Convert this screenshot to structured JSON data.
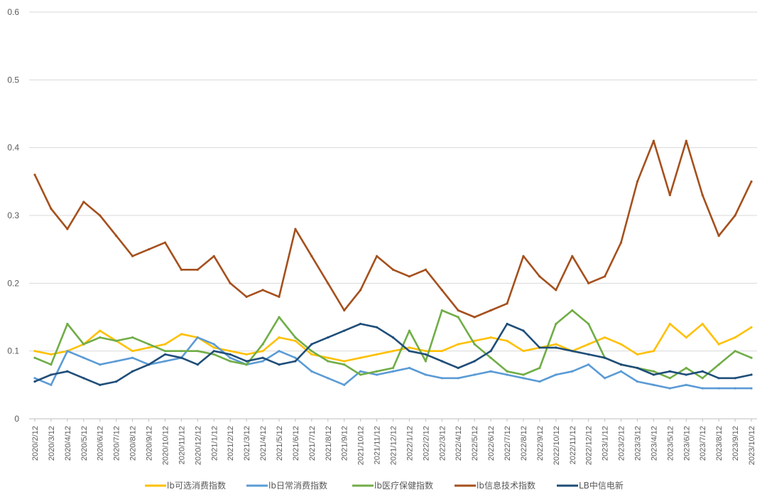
{
  "chart_data": {
    "type": "line",
    "title": "",
    "xlabel": "",
    "ylabel": "",
    "ylim": [
      0,
      0.6
    ],
    "yticks": [
      "0",
      "0.1",
      "0.2",
      "0.3",
      "0.4",
      "0.5",
      "0.6"
    ],
    "grid": true,
    "legend_position": "bottom",
    "x": [
      "2020/2/12",
      "2020/3/12",
      "2020/4/12",
      "2020/5/12",
      "2020/6/12",
      "2020/7/12",
      "2020/8/12",
      "2020/9/12",
      "2020/10/12",
      "2020/11/12",
      "2020/12/12",
      "2021/1/12",
      "2021/2/12",
      "2021/3/12",
      "2021/4/12",
      "2021/5/12",
      "2021/6/12",
      "2021/7/12",
      "2021/8/12",
      "2021/9/12",
      "2021/10/12",
      "2021/11/12",
      "2021/12/12",
      "2022/1/12",
      "2022/2/12",
      "2022/3/12",
      "2022/4/12",
      "2022/5/12",
      "2022/6/12",
      "2022/7/12",
      "2022/8/12",
      "2022/9/12",
      "2022/10/12",
      "2022/11/12",
      "2022/12/12",
      "2023/1/12",
      "2023/2/12",
      "2023/3/12",
      "2023/4/12",
      "2023/5/12",
      "2023/6/12",
      "2023/7/12",
      "2023/8/12",
      "2023/9/12",
      "2023/10/12"
    ],
    "series": [
      {
        "name": "lb可选消费指数",
        "color": "#FFC000",
        "values": [
          0.1,
          0.095,
          0.1,
          0.11,
          0.13,
          0.115,
          0.1,
          0.105,
          0.11,
          0.125,
          0.12,
          0.105,
          0.1,
          0.095,
          0.1,
          0.12,
          0.115,
          0.095,
          0.09,
          0.085,
          0.09,
          0.095,
          0.1,
          0.105,
          0.1,
          0.1,
          0.11,
          0.115,
          0.12,
          0.115,
          0.1,
          0.105,
          0.11,
          0.1,
          0.11,
          0.12,
          0.11,
          0.095,
          0.1,
          0.14,
          0.12,
          0.14,
          0.11,
          0.12,
          0.135
        ]
      },
      {
        "name": "lb日常消费指数",
        "color": "#5B9BD5",
        "values": [
          0.06,
          0.05,
          0.1,
          0.09,
          0.08,
          0.085,
          0.09,
          0.08,
          0.085,
          0.09,
          0.12,
          0.11,
          0.09,
          0.08,
          0.085,
          0.1,
          0.09,
          0.07,
          0.06,
          0.05,
          0.07,
          0.065,
          0.07,
          0.075,
          0.065,
          0.06,
          0.06,
          0.065,
          0.07,
          0.065,
          0.06,
          0.055,
          0.065,
          0.07,
          0.08,
          0.06,
          0.07,
          0.055,
          0.05,
          0.045,
          0.05,
          0.045,
          0.045,
          0.045,
          0.045
        ]
      },
      {
        "name": "lb医疗保健指数",
        "color": "#70AD47",
        "values": [
          0.09,
          0.08,
          0.14,
          0.11,
          0.12,
          0.115,
          0.12,
          0.11,
          0.1,
          0.1,
          0.1,
          0.095,
          0.085,
          0.08,
          0.11,
          0.15,
          0.12,
          0.1,
          0.085,
          0.08,
          0.065,
          0.07,
          0.075,
          0.13,
          0.085,
          0.16,
          0.15,
          0.11,
          0.09,
          0.07,
          0.065,
          0.075,
          0.14,
          0.16,
          0.14,
          0.09,
          0.08,
          0.075,
          0.07,
          0.06,
          0.075,
          0.06,
          0.08,
          0.1,
          0.09
        ]
      },
      {
        "name": "lb信息技术指数",
        "color": "#A5501D",
        "values": [
          0.36,
          0.31,
          0.28,
          0.32,
          0.3,
          0.27,
          0.24,
          0.25,
          0.26,
          0.22,
          0.22,
          0.24,
          0.2,
          0.18,
          0.19,
          0.18,
          0.28,
          0.24,
          0.2,
          0.16,
          0.19,
          0.24,
          0.22,
          0.21,
          0.22,
          0.19,
          0.16,
          0.15,
          0.16,
          0.17,
          0.24,
          0.21,
          0.19,
          0.24,
          0.2,
          0.21,
          0.26,
          0.35,
          0.41,
          0.33,
          0.41,
          0.33,
          0.27,
          0.3,
          0.35
        ]
      },
      {
        "name": "LB中信电新",
        "color": "#1F4E79",
        "values": [
          0.055,
          0.065,
          0.07,
          0.06,
          0.05,
          0.055,
          0.07,
          0.08,
          0.095,
          0.09,
          0.08,
          0.1,
          0.095,
          0.085,
          0.09,
          0.08,
          0.085,
          0.11,
          0.12,
          0.13,
          0.14,
          0.135,
          0.12,
          0.1,
          0.095,
          0.085,
          0.075,
          0.085,
          0.1,
          0.14,
          0.13,
          0.105,
          0.105,
          0.1,
          0.095,
          0.09,
          0.08,
          0.075,
          0.065,
          0.07,
          0.065,
          0.07,
          0.06,
          0.06,
          0.065
        ]
      }
    ]
  }
}
